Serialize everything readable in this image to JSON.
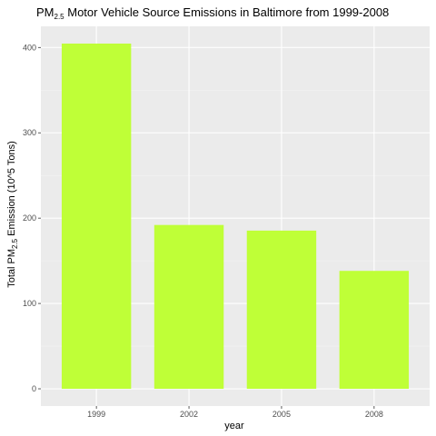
{
  "chart_data": {
    "type": "bar",
    "title": {
      "prefix": "PM",
      "subscript": "2.5",
      "suffix": " Motor Vehicle Source Emissions in Baltimore from 1999-2008"
    },
    "xlabel": "year",
    "ylabel": {
      "prefix": "Total PM",
      "subscript": "2.5",
      "suffix": " Emission (10^5 Tons)"
    },
    "categories": [
      "1999",
      "2002",
      "2005",
      "2008"
    ],
    "values": [
      404.6,
      192.0,
      185.4,
      138.2
    ],
    "yticks": [
      0,
      100,
      200,
      300,
      400
    ],
    "ylim": [
      -20.2,
      424.8
    ],
    "grid": true,
    "legend": "none",
    "colors": {
      "bar": "#bfff37",
      "panel": "#ebebeb",
      "grid_major": "#ffffff",
      "grid_minor": "#f4f4f4",
      "tick_text": "#4d4d4d",
      "text": "#000000"
    }
  }
}
